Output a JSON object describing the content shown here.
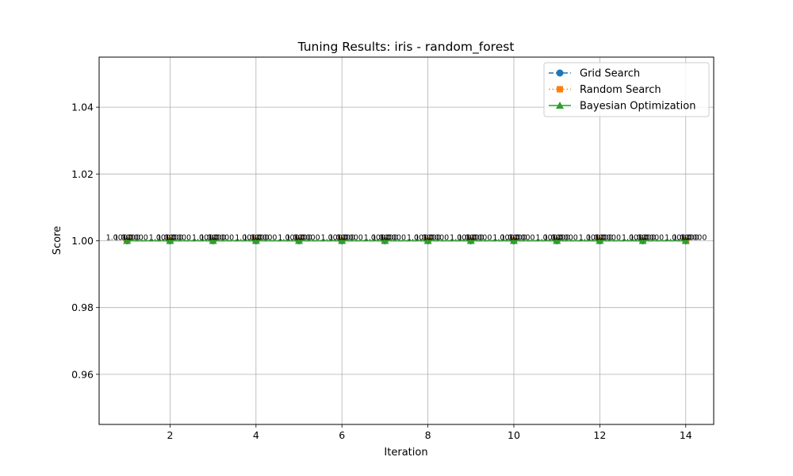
{
  "chart_data": {
    "type": "line",
    "title": "Tuning Results: iris - random_forest",
    "xlabel": "Iteration",
    "ylabel": "Score",
    "x": [
      1,
      2,
      3,
      4,
      5,
      6,
      7,
      8,
      9,
      10,
      11,
      12,
      13,
      14
    ],
    "xlim": [
      0.35,
      14.65
    ],
    "ylim": [
      0.945,
      1.055
    ],
    "xticks": [
      2,
      4,
      6,
      8,
      10,
      12,
      14
    ],
    "yticks": [
      0.96,
      0.98,
      1.0,
      1.02,
      1.04
    ],
    "xtick_labels": [
      "2",
      "4",
      "6",
      "8",
      "10",
      "12",
      "14"
    ],
    "ytick_labels": [
      "0.96",
      "0.98",
      "1.00",
      "1.02",
      "1.04"
    ],
    "grid": true,
    "legend_position": "top-right",
    "series": [
      {
        "name": "Grid Search",
        "values": [
          1,
          1,
          1,
          1,
          1,
          1,
          1,
          1,
          1,
          1,
          1,
          1,
          1,
          1
        ],
        "color": "#1f77b4",
        "marker": "circle",
        "line_style": "dashed",
        "data_labels": [
          "1.0000",
          "1.0000",
          "1.0000",
          "1.0000",
          "1.0000",
          "1.0000",
          "1.0000",
          "1.0000",
          "1.0000",
          "1.0000",
          "1.0000",
          "1.0000",
          "1.0000",
          "1.0000"
        ]
      },
      {
        "name": "Random Search",
        "values": [
          1,
          1,
          1,
          1,
          1,
          1,
          1,
          1,
          1,
          1,
          1,
          1,
          1,
          1
        ],
        "color": "#ff7f0e",
        "marker": "square",
        "line_style": "dotted",
        "data_labels": [
          "1.0000",
          "1.0000",
          "1.0000",
          "1.0000",
          "1.0000",
          "1.0000",
          "1.0000",
          "1.0000",
          "1.0000",
          "1.0000",
          "1.0000",
          "1.0000",
          "1.0000",
          "1.0000"
        ]
      },
      {
        "name": "Bayesian Optimization",
        "values": [
          1,
          1,
          1,
          1,
          1,
          1,
          1,
          1,
          1,
          1,
          1,
          1,
          1,
          1
        ],
        "color": "#2ca02c",
        "marker": "triangle",
        "line_style": "solid",
        "data_labels": [
          "1.0000",
          "1.0000",
          "1.0000",
          "1.0000",
          "1.0000",
          "1.0000",
          "1.0000",
          "1.0000",
          "1.0000",
          "1.0000",
          "1.0000",
          "1.0000",
          "1.0000",
          "1.0000"
        ]
      }
    ]
  }
}
